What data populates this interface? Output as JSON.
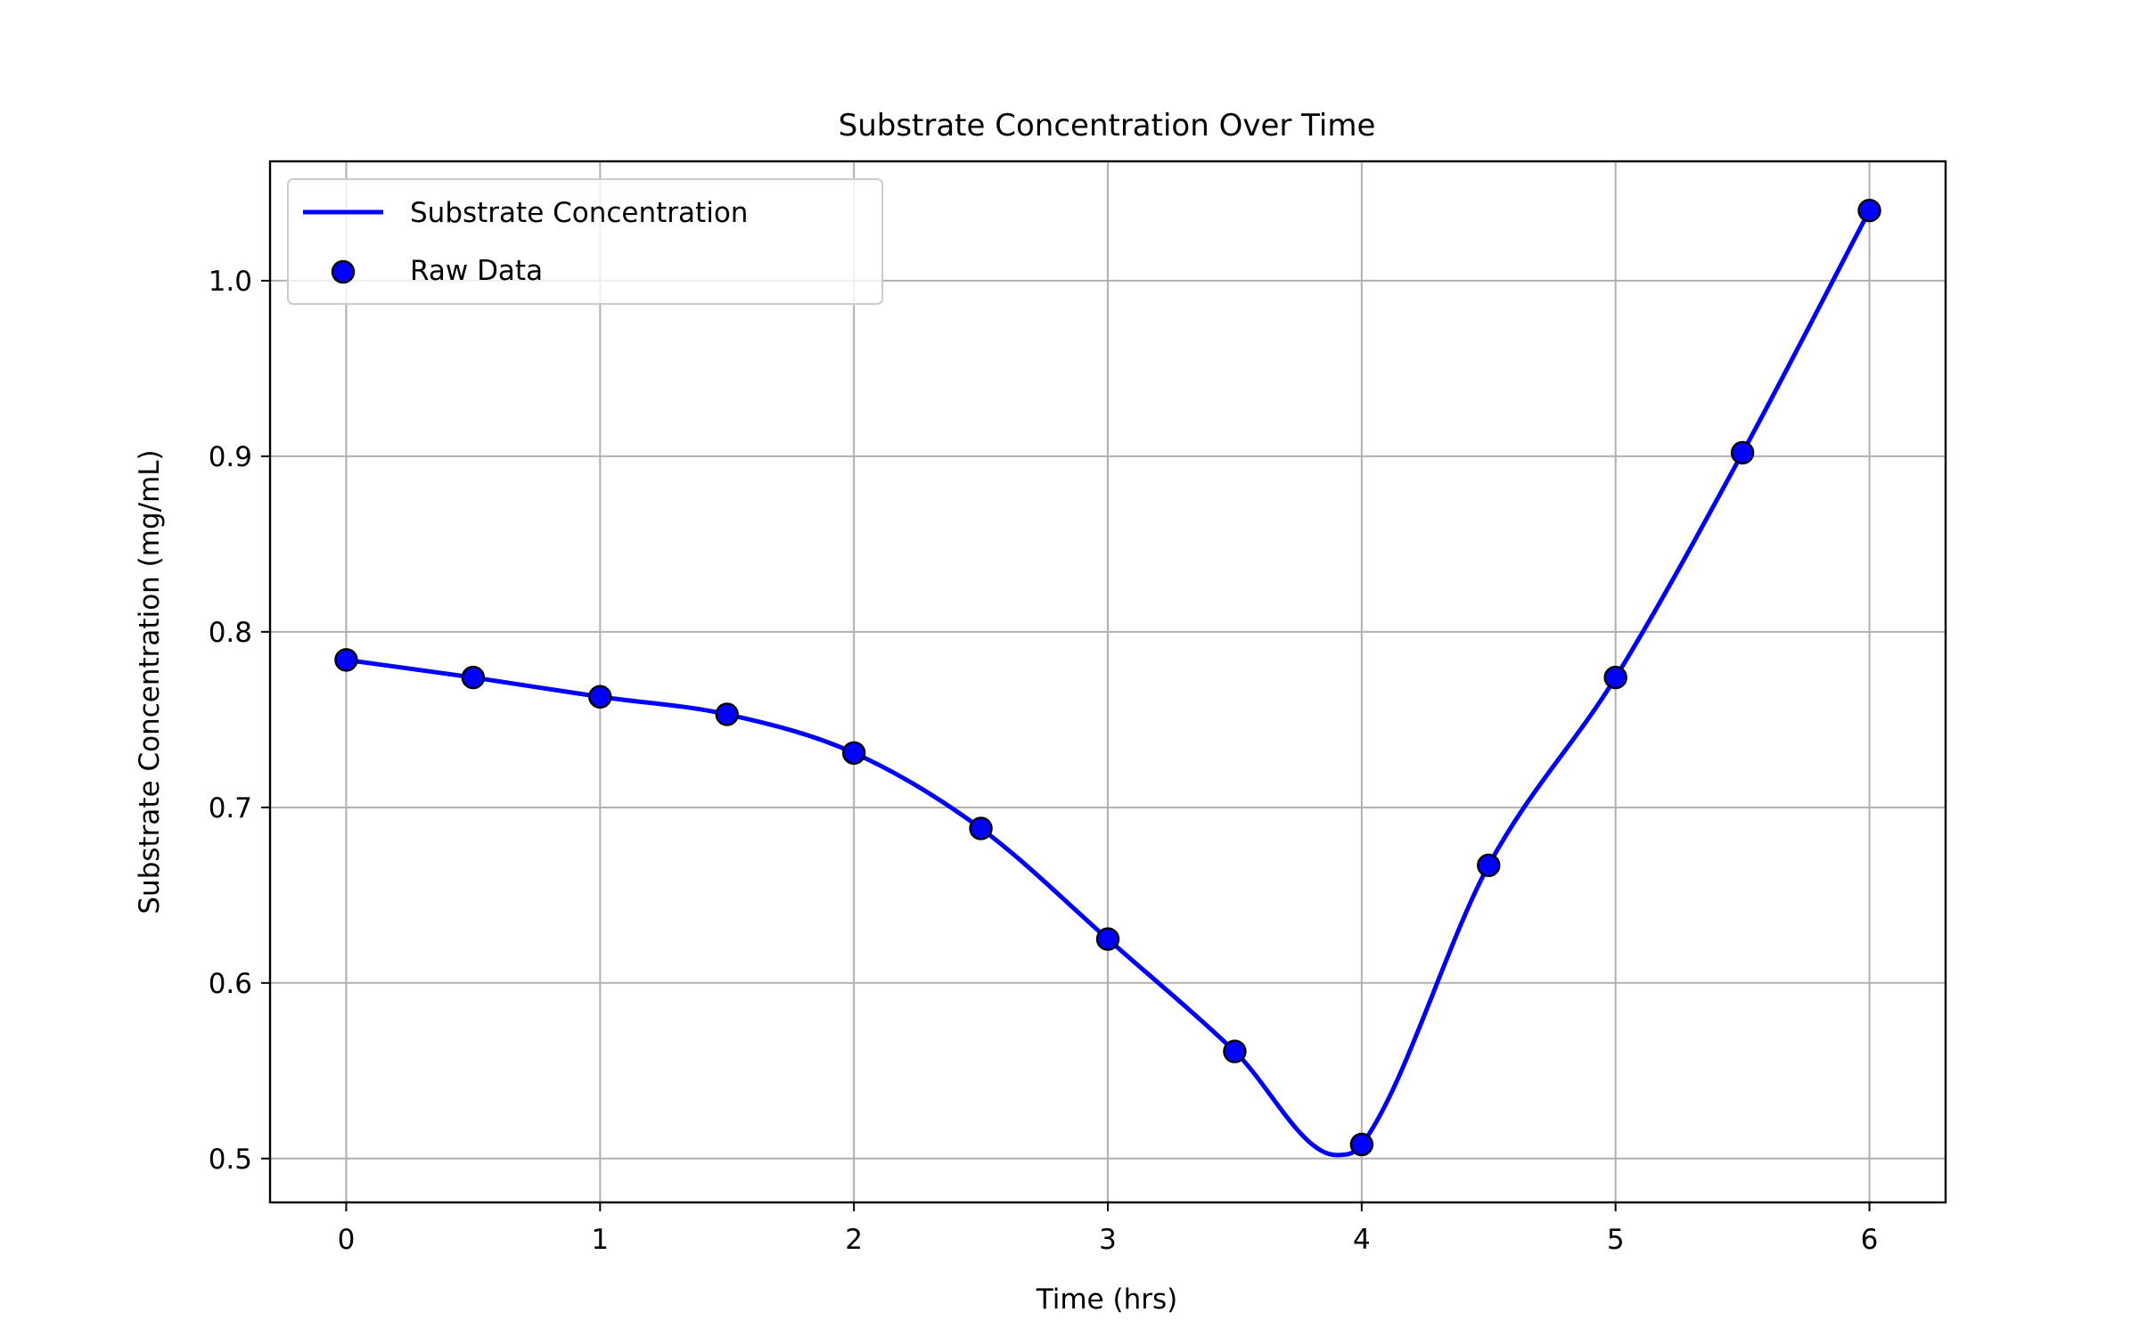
{
  "chart_data": {
    "type": "line",
    "title": "Substrate Concentration Over Time",
    "xlabel": "Time (hrs)",
    "ylabel": "Substrate Concentration (mg/mL)",
    "xlim": [
      -0.3,
      6.3
    ],
    "ylim": [
      0.475,
      1.068
    ],
    "xticks": [
      0,
      1,
      2,
      3,
      4,
      5,
      6
    ],
    "xtick_labels": [
      "0",
      "1",
      "2",
      "3",
      "4",
      "5",
      "6"
    ],
    "yticks": [
      0.5,
      0.6,
      0.7,
      0.8,
      0.9,
      1.0
    ],
    "ytick_labels": [
      "0.5",
      "0.6",
      "0.7",
      "0.8",
      "0.9",
      "1.0"
    ],
    "grid": true,
    "legend": "upper-left",
    "series": [
      {
        "name": "Substrate Concentration",
        "kind": "line",
        "color": "#0000ff",
        "curve": "smooth",
        "x": [
          0,
          0.5,
          1,
          1.5,
          2,
          2.5,
          3,
          3.5,
          3.9,
          4,
          4.5,
          5,
          5.5,
          6
        ],
        "y": [
          0.784,
          0.774,
          0.763,
          0.753,
          0.731,
          0.688,
          0.625,
          0.561,
          0.502,
          0.508,
          0.667,
          0.774,
          0.902,
          1.04
        ]
      },
      {
        "name": "Raw Data",
        "kind": "scatter",
        "color": "#0000ff",
        "edge_color": "#000000",
        "x": [
          0,
          0.5,
          1,
          1.5,
          2,
          2.5,
          3,
          3.5,
          4,
          4.5,
          5,
          5.5,
          6
        ],
        "y": [
          0.784,
          0.774,
          0.763,
          0.753,
          0.731,
          0.688,
          0.625,
          0.561,
          0.508,
          0.667,
          0.774,
          0.902,
          1.04
        ]
      }
    ]
  }
}
